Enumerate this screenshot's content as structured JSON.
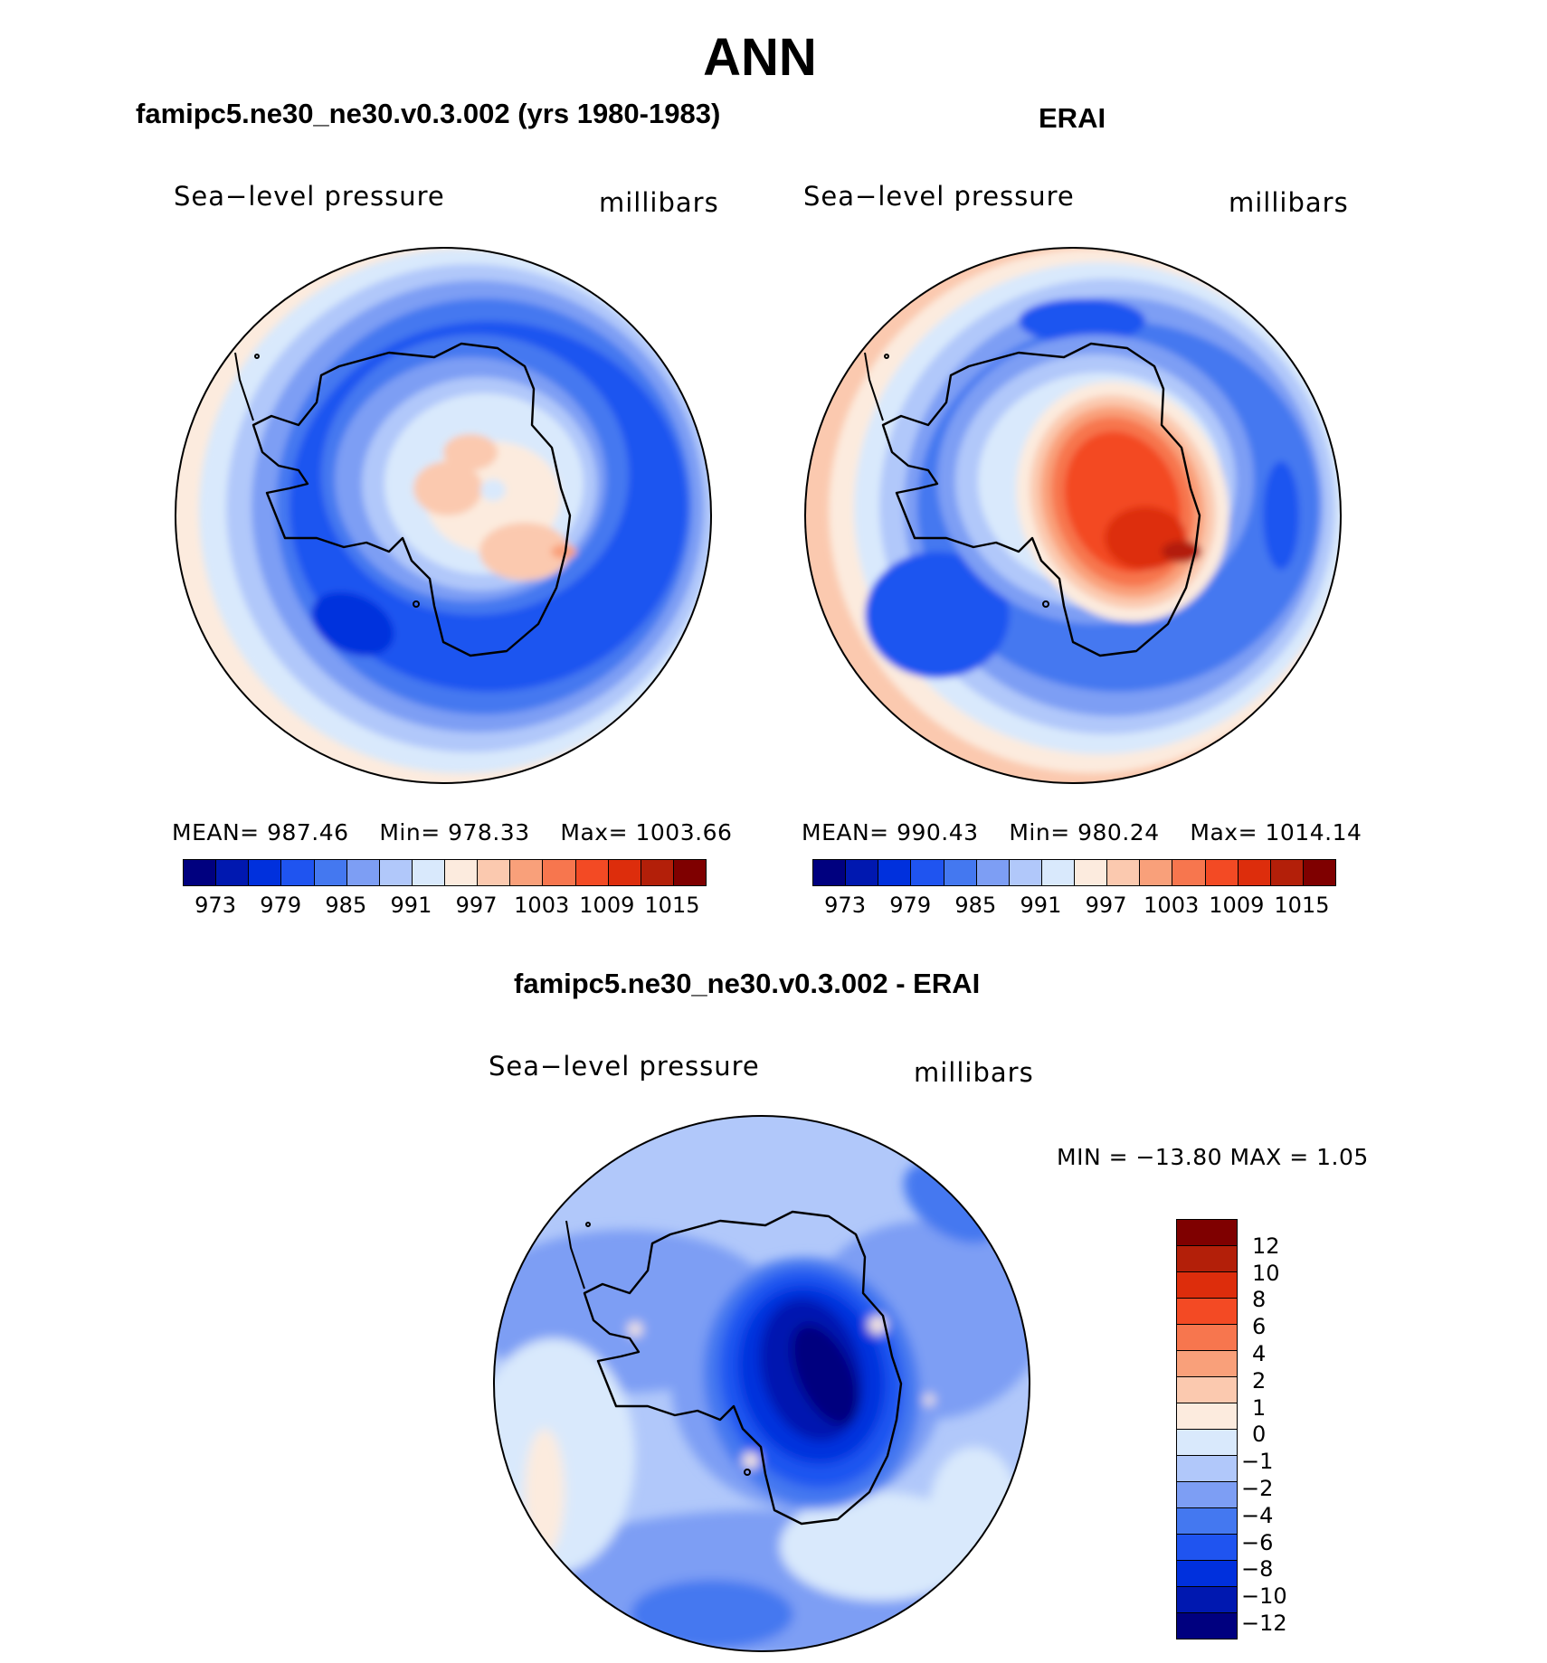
{
  "figure": {
    "title": "ANN"
  },
  "colors": {
    "abs_levels": [
      "#00007f",
      "#0018b0",
      "#0030dd",
      "#1f54f0",
      "#4478f0",
      "#7d9ef4",
      "#b1c8fa",
      "#d9e9fc",
      "#fcebde",
      "#fbc9af",
      "#f9a07a",
      "#f7764e",
      "#f34a24",
      "#dd2d0c",
      "#b31f09",
      "#7f0000"
    ],
    "diff_levels": [
      "#7f0000",
      "#b31f09",
      "#dd2d0c",
      "#f34a24",
      "#f7764e",
      "#f9a07a",
      "#fbc9af",
      "#fcebde",
      "#d9e9fc",
      "#b1c8fa",
      "#7d9ef4",
      "#4478f0",
      "#1f54f0",
      "#0030dd",
      "#0018b0",
      "#00007f"
    ],
    "coast": "#000000"
  },
  "panels": {
    "model": {
      "title": "famipc5.ne30_ne30.v0.3.002 (yrs 1980-1983)",
      "variable": "Sea−level pressure",
      "units": "millibars",
      "mean_label": "MEAN=",
      "mean": "987.46",
      "min_label": "Min=",
      "min": "978.33",
      "max_label": "Max=",
      "max": "1003.66",
      "ticks": [
        "973",
        "979",
        "985",
        "991",
        "997",
        "1003",
        "1009",
        "1015"
      ]
    },
    "obs": {
      "title": "ERAI",
      "variable": "Sea−level pressure",
      "units": "millibars",
      "mean_label": "MEAN=",
      "mean": "990.43",
      "min_label": "Min=",
      "min": "980.24",
      "max_label": "Max=",
      "max": "1014.14",
      "ticks": [
        "973",
        "979",
        "985",
        "991",
        "997",
        "1003",
        "1009",
        "1015"
      ]
    },
    "diff": {
      "title": "famipc5.ne30_ne30.v0.3.002 - ERAI",
      "variable": "Sea−level pressure",
      "units": "millibars",
      "minmax_text": "MIN = −13.80 MAX =    1.05",
      "ticks": [
        "12",
        "10",
        "8",
        "6",
        "4",
        "2",
        "1",
        "0",
        "−1",
        "−2",
        "−4",
        "−6",
        "−8",
        "−10",
        "−12"
      ]
    }
  },
  "chart_data": [
    {
      "type": "heatmap",
      "projection": "south polar stereographic",
      "title": "famipc5.ne30_ne30.v0.3.002 (yrs 1980-1983)",
      "variable": "Sea-level pressure",
      "units": "millibars",
      "stats": {
        "mean": 987.46,
        "min": 978.33,
        "max": 1003.66
      },
      "contour_levels": [
        973,
        976,
        979,
        982,
        985,
        988,
        991,
        994,
        997,
        1000,
        1003,
        1006,
        1009,
        1012,
        1015
      ],
      "colorbar_tick_labels": [
        973,
        979,
        985,
        991,
        997,
        1003,
        1009,
        1015
      ]
    },
    {
      "type": "heatmap",
      "projection": "south polar stereographic",
      "title": "ERAI",
      "variable": "Sea-level pressure",
      "units": "millibars",
      "stats": {
        "mean": 990.43,
        "min": 980.24,
        "max": 1014.14
      },
      "contour_levels": [
        973,
        976,
        979,
        982,
        985,
        988,
        991,
        994,
        997,
        1000,
        1003,
        1006,
        1009,
        1012,
        1015
      ],
      "colorbar_tick_labels": [
        973,
        979,
        985,
        991,
        997,
        1003,
        1009,
        1015
      ]
    },
    {
      "type": "heatmap",
      "projection": "south polar stereographic",
      "title": "famipc5.ne30_ne30.v0.3.002 - ERAI",
      "variable": "Sea-level pressure",
      "units": "millibars",
      "stats": {
        "min": -13.8,
        "max": 1.05
      },
      "contour_levels": [
        12,
        10,
        8,
        6,
        4,
        2,
        1,
        0,
        -1,
        -2,
        -4,
        -6,
        -8,
        -10,
        -12
      ],
      "colorbar_tick_labels": [
        12,
        10,
        8,
        6,
        4,
        2,
        1,
        0,
        -1,
        -2,
        -4,
        -6,
        -8,
        -10,
        -12
      ]
    }
  ]
}
